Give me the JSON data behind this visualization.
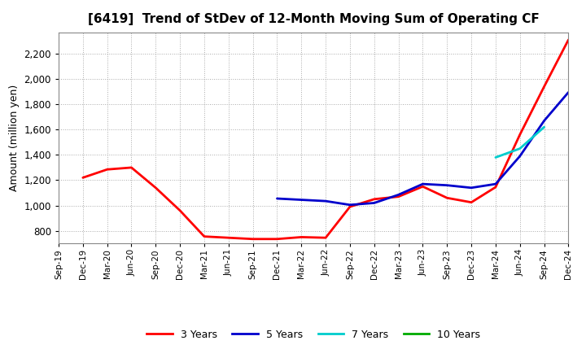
{
  "title": "[6419]  Trend of StDev of 12-Month Moving Sum of Operating CF",
  "ylabel": "Amount (million yen)",
  "background_color": "#ffffff",
  "grid_color": "#aaaaaa",
  "ylim": [
    700,
    2370
  ],
  "yticks": [
    800,
    1000,
    1200,
    1400,
    1600,
    1800,
    2000,
    2200
  ],
  "xtick_labels": [
    "Sep-19",
    "Dec-19",
    "Mar-20",
    "Jun-20",
    "Sep-20",
    "Dec-20",
    "Mar-21",
    "Jun-21",
    "Sep-21",
    "Dec-21",
    "Mar-22",
    "Jun-22",
    "Sep-22",
    "Dec-22",
    "Mar-23",
    "Jun-23",
    "Sep-23",
    "Dec-23",
    "Mar-24",
    "Jun-24",
    "Sep-24",
    "Dec-24"
  ],
  "series": {
    "3 Years": {
      "color": "#ff0000",
      "linewidth": 2.0,
      "data": [
        [
          "Sep-19",
          null
        ],
        [
          "Dec-19",
          1220
        ],
        [
          "Mar-20",
          1285
        ],
        [
          "Jun-20",
          1300
        ],
        [
          "Sep-20",
          1140
        ],
        [
          "Dec-20",
          960
        ],
        [
          "Mar-21",
          755
        ],
        [
          "Jun-21",
          745
        ],
        [
          "Sep-21",
          735
        ],
        [
          "Dec-21",
          735
        ],
        [
          "Mar-22",
          750
        ],
        [
          "Jun-22",
          745
        ],
        [
          "Sep-22",
          990
        ],
        [
          "Dec-22",
          1050
        ],
        [
          "Mar-23",
          1070
        ],
        [
          "Jun-23",
          1150
        ],
        [
          "Sep-23",
          1060
        ],
        [
          "Dec-23",
          1025
        ],
        [
          "Mar-24",
          1145
        ],
        [
          "Jun-24",
          1560
        ],
        [
          "Sep-24",
          1940
        ],
        [
          "Dec-24",
          2310
        ]
      ]
    },
    "5 Years": {
      "color": "#0000cc",
      "linewidth": 2.0,
      "data": [
        [
          "Sep-19",
          null
        ],
        [
          "Dec-19",
          null
        ],
        [
          "Mar-20",
          null
        ],
        [
          "Jun-20",
          null
        ],
        [
          "Sep-20",
          null
        ],
        [
          "Dec-20",
          null
        ],
        [
          "Mar-21",
          null
        ],
        [
          "Jun-21",
          null
        ],
        [
          "Sep-21",
          null
        ],
        [
          "Dec-21",
          1055
        ],
        [
          "Mar-22",
          1045
        ],
        [
          "Jun-22",
          1035
        ],
        [
          "Sep-22",
          1005
        ],
        [
          "Dec-22",
          1020
        ],
        [
          "Mar-23",
          1085
        ],
        [
          "Jun-23",
          1170
        ],
        [
          "Sep-23",
          1160
        ],
        [
          "Dec-23",
          1140
        ],
        [
          "Mar-24",
          1170
        ],
        [
          "Jun-24",
          1390
        ],
        [
          "Sep-24",
          1670
        ],
        [
          "Dec-24",
          1895
        ]
      ]
    },
    "7 Years": {
      "color": "#00cccc",
      "linewidth": 2.0,
      "data": [
        [
          "Sep-19",
          null
        ],
        [
          "Dec-19",
          null
        ],
        [
          "Mar-20",
          null
        ],
        [
          "Jun-20",
          null
        ],
        [
          "Sep-20",
          null
        ],
        [
          "Dec-20",
          null
        ],
        [
          "Mar-21",
          null
        ],
        [
          "Jun-21",
          null
        ],
        [
          "Sep-21",
          null
        ],
        [
          "Dec-21",
          null
        ],
        [
          "Mar-22",
          null
        ],
        [
          "Jun-22",
          null
        ],
        [
          "Sep-22",
          null
        ],
        [
          "Dec-22",
          null
        ],
        [
          "Mar-23",
          null
        ],
        [
          "Jun-23",
          null
        ],
        [
          "Sep-23",
          null
        ],
        [
          "Dec-23",
          null
        ],
        [
          "Mar-24",
          1380
        ],
        [
          "Jun-24",
          1450
        ],
        [
          "Sep-24",
          1620
        ],
        [
          "Dec-24",
          null
        ]
      ]
    },
    "10 Years": {
      "color": "#00aa00",
      "linewidth": 2.0,
      "data": [
        [
          "Sep-19",
          null
        ],
        [
          "Dec-19",
          null
        ],
        [
          "Mar-20",
          null
        ],
        [
          "Jun-20",
          null
        ],
        [
          "Sep-20",
          null
        ],
        [
          "Dec-20",
          null
        ],
        [
          "Mar-21",
          null
        ],
        [
          "Jun-21",
          null
        ],
        [
          "Sep-21",
          null
        ],
        [
          "Dec-21",
          null
        ],
        [
          "Mar-22",
          null
        ],
        [
          "Jun-22",
          null
        ],
        [
          "Sep-22",
          null
        ],
        [
          "Dec-22",
          null
        ],
        [
          "Mar-23",
          null
        ],
        [
          "Jun-23",
          null
        ],
        [
          "Sep-23",
          null
        ],
        [
          "Dec-23",
          null
        ],
        [
          "Mar-24",
          null
        ],
        [
          "Jun-24",
          null
        ],
        [
          "Sep-24",
          null
        ],
        [
          "Dec-24",
          null
        ]
      ]
    }
  },
  "legend_order": [
    "3 Years",
    "5 Years",
    "7 Years",
    "10 Years"
  ]
}
